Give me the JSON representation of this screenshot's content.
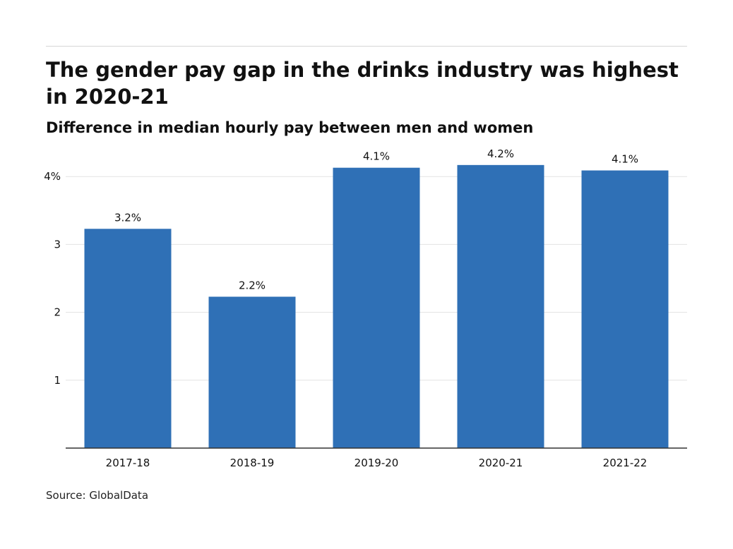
{
  "title": "The gender pay gap in the drinks industry was highest in 2020-21",
  "subtitle": "Difference in median hourly pay between men and women",
  "source": "Source: GlobalData",
  "colors": {
    "bar": "#2f70b6",
    "grid": "#e3e3e3",
    "axis": "#333333",
    "text": "#111111"
  },
  "chart_data": {
    "type": "bar",
    "categories": [
      "2017-18",
      "2018-19",
      "2019-20",
      "2020-21",
      "2021-22"
    ],
    "values": [
      3.23,
      2.23,
      4.13,
      4.17,
      4.09
    ],
    "data_labels": [
      "3.2%",
      "2.2%",
      "4.1%",
      "4.2%",
      "4.1%"
    ],
    "yticks": [
      1,
      2,
      3,
      4
    ],
    "ytick_labels": [
      "1",
      "2",
      "3",
      "4%"
    ],
    "ylim": [
      0,
      4.4
    ],
    "xlabel": "",
    "ylabel": "",
    "grid": true,
    "legend": "none"
  }
}
